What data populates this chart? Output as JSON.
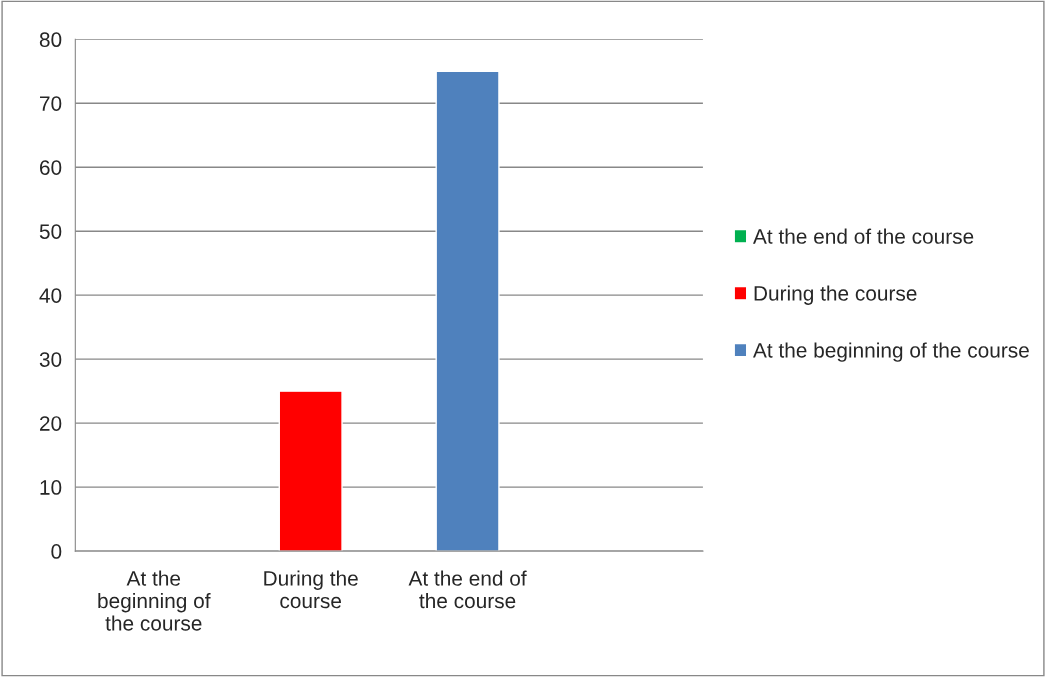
{
  "chart_data": {
    "type": "bar",
    "categories": [
      "At the beginning of the course",
      "During the course",
      "At the end of the course",
      null
    ],
    "series": [
      {
        "name": "At the beginning of the course",
        "color": "#4f81bd",
        "values": [
          null,
          null,
          75,
          null
        ]
      },
      {
        "name": "During the course",
        "color": "#ff0000",
        "values": [
          null,
          25,
          null,
          null
        ]
      },
      {
        "name": "At the end of the course",
        "color": "#00b050",
        "values": [
          null,
          null,
          null,
          null
        ]
      }
    ],
    "ylim": [
      0,
      80
    ],
    "yticks": [
      0,
      10,
      20,
      30,
      40,
      50,
      60,
      70,
      80
    ],
    "grid": "y",
    "legend": "right"
  }
}
